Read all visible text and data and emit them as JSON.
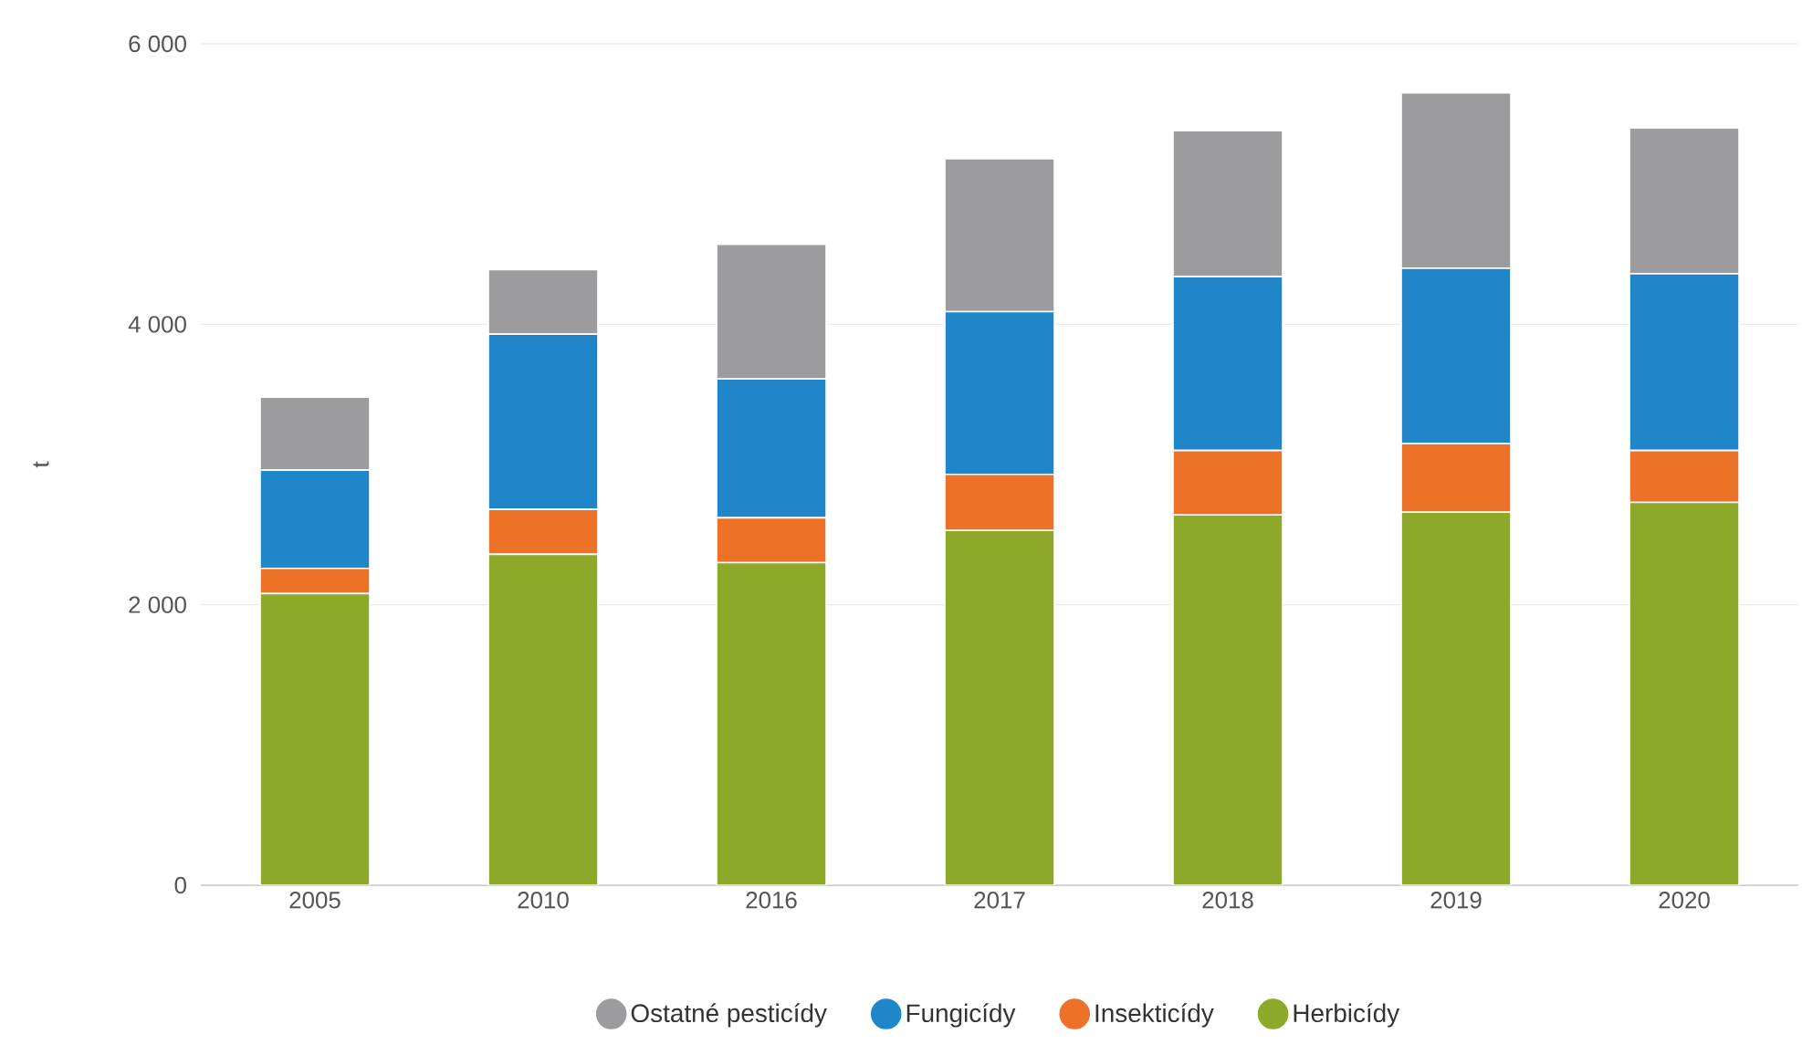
{
  "chart_data": {
    "type": "bar",
    "stacked": true,
    "ylabel": "t",
    "categories": [
      "2005",
      "2010",
      "2016",
      "2017",
      "2018",
      "2019",
      "2020"
    ],
    "series": [
      {
        "name": "Herbicídy",
        "color": "#8ea82a",
        "values": [
          2080,
          2360,
          2300,
          2530,
          2640,
          2660,
          2730
        ]
      },
      {
        "name": "Insekticídy",
        "color": "#ee7128",
        "values": [
          180,
          320,
          320,
          400,
          460,
          490,
          370
        ]
      },
      {
        "name": "Fungicídy",
        "color": "#1f87c9",
        "values": [
          700,
          1250,
          990,
          1160,
          1240,
          1250,
          1260
        ]
      },
      {
        "name": "Ostatné pesticídy",
        "color": "#9c9c9e",
        "values": [
          520,
          460,
          960,
          1090,
          1040,
          1250,
          1040
        ]
      }
    ],
    "ylim": [
      0,
      6000
    ],
    "yticks": [
      {
        "value": 0,
        "label": "0"
      },
      {
        "value": 2000,
        "label": "2 000"
      },
      {
        "value": 4000,
        "label": "4 000"
      },
      {
        "value": 6000,
        "label": "6 000"
      }
    ],
    "grid": "y",
    "legend": "bottom"
  }
}
